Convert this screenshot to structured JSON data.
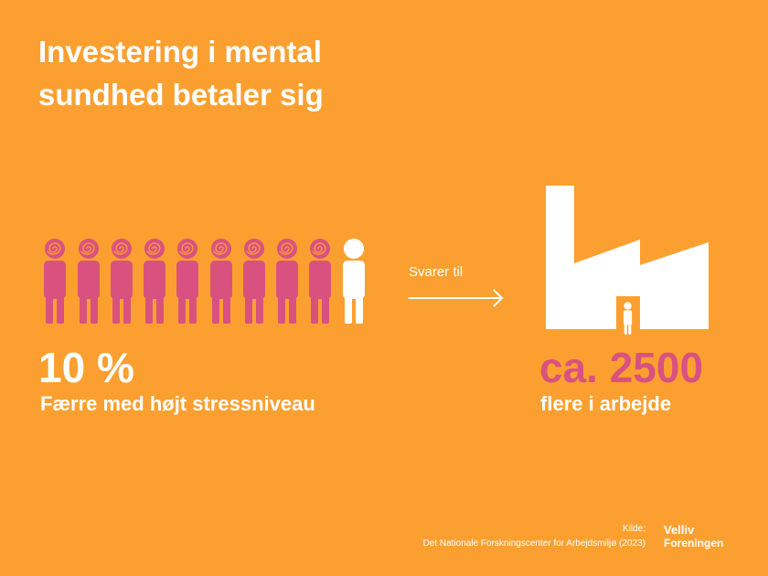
{
  "header": {
    "title_lines": [
      "Investering i mental",
      "sundhed betaler sig"
    ]
  },
  "left_stat": {
    "value": "10 %",
    "caption": "Færre med højt stressniveau"
  },
  "connector": {
    "label": "Svarer til"
  },
  "right_stat": {
    "value": "ca. 2500",
    "caption": "flere i arbejde"
  },
  "footer": {
    "source_label": "Kilde:",
    "source": "Det Nationale Forskningscenter for Arbejdsmiljø (2023)",
    "logo_lines": [
      "Velliv",
      "Foreningen"
    ]
  }
}
